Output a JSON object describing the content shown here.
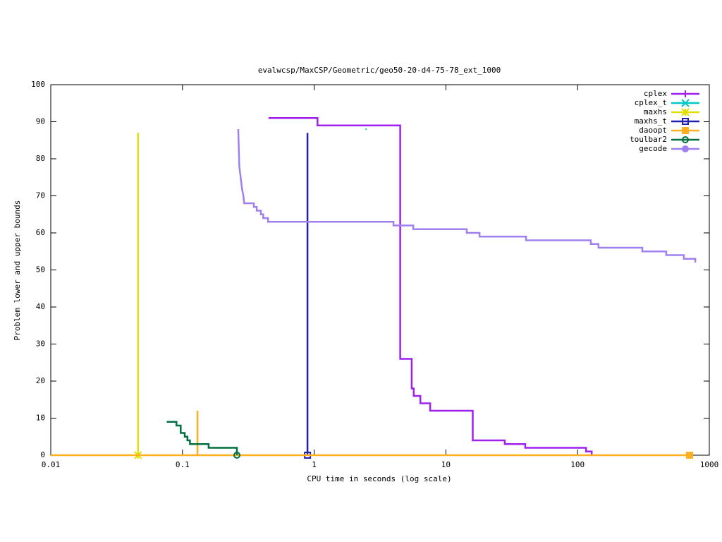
{
  "chart_data": {
    "type": "line",
    "title": "evalwcsp/MaxCSP/Geometric/geo50-20-d4-75-78_ext_1000",
    "x_label": "CPU time in seconds (log scale)",
    "y_label": "Problem lower and upper bounds",
    "xscale": "log",
    "xlim": [
      0.01,
      1000
    ],
    "xticks": [
      0.01,
      0.1,
      1,
      10,
      100,
      1000
    ],
    "ylim": [
      0,
      100
    ],
    "yticks": [
      0,
      10,
      20,
      30,
      40,
      50,
      60,
      70,
      80,
      90,
      100
    ],
    "grid": false,
    "legend": "top-right",
    "series": [
      {
        "name": "cplex",
        "color": "#a020f0",
        "marker": "plus",
        "end_marker": false,
        "x": [
          0.45,
          1.06,
          1.06,
          4.5,
          4.5,
          5.5,
          5.5,
          5.7,
          5.7,
          6.4,
          6.4,
          7.6,
          7.6,
          16,
          16,
          28,
          28,
          40,
          40,
          116,
          116,
          128,
          128
        ],
        "values": [
          91,
          91,
          89,
          89,
          26,
          26,
          18,
          18,
          16,
          16,
          14,
          14,
          12,
          12,
          4,
          4,
          3,
          3,
          2,
          2,
          1,
          1,
          0
        ]
      },
      {
        "name": "cplex_t",
        "color": "#00c8c8",
        "marker": "cross",
        "end_marker": false,
        "x": [
          2.45,
          2.5
        ],
        "values": [
          88,
          88
        ]
      },
      {
        "name": "maxhs",
        "color": "#e0e000",
        "marker": "star",
        "end_marker": true,
        "x": [
          0.046,
          0.046
        ],
        "values": [
          87,
          0
        ]
      },
      {
        "name": "maxhs_t",
        "color": "#2020b0",
        "marker": "open-square",
        "end_marker": true,
        "x": [
          0.89,
          0.89
        ],
        "values": [
          87,
          0
        ]
      },
      {
        "name": "daoopt",
        "color": "#ffb020",
        "marker": "filled-square",
        "end_marker": true,
        "x": [
          0.13,
          0.13,
          0.01,
          708
        ],
        "values": [
          12,
          0,
          0,
          0
        ]
      },
      {
        "name": "toulbar2",
        "color": "#007040",
        "marker": "open-circle",
        "end_marker": true,
        "x": [
          0.076,
          0.09,
          0.09,
          0.097,
          0.097,
          0.104,
          0.104,
          0.109,
          0.109,
          0.114,
          0.114,
          0.158,
          0.158,
          0.259,
          0.259
        ],
        "values": [
          9,
          9,
          8,
          8,
          6,
          6,
          5,
          5,
          4,
          4,
          3,
          3,
          2,
          2,
          0
        ]
      },
      {
        "name": "gecode",
        "color": "#a080f0",
        "marker": "filled-circle",
        "end_marker": false,
        "x": [
          0.265,
          0.27,
          0.283,
          0.29,
          0.294,
          0.348,
          0.348,
          0.366,
          0.366,
          0.394,
          0.394,
          0.41,
          0.41,
          0.446,
          0.446,
          4.0,
          4.0,
          5.65,
          5.65,
          14.4,
          14.4,
          18,
          18,
          40.6,
          40.6,
          126,
          126,
          144,
          144,
          310,
          310,
          471,
          471,
          641,
          641,
          782,
          782
        ],
        "values": [
          88,
          78,
          72,
          70,
          68,
          68,
          67,
          67,
          66,
          66,
          65,
          65,
          64,
          64,
          63,
          63,
          62,
          62,
          61,
          61,
          60,
          60,
          59,
          59,
          58,
          58,
          57,
          57,
          56,
          56,
          55,
          55,
          54,
          54,
          53,
          53,
          52
        ]
      }
    ]
  }
}
